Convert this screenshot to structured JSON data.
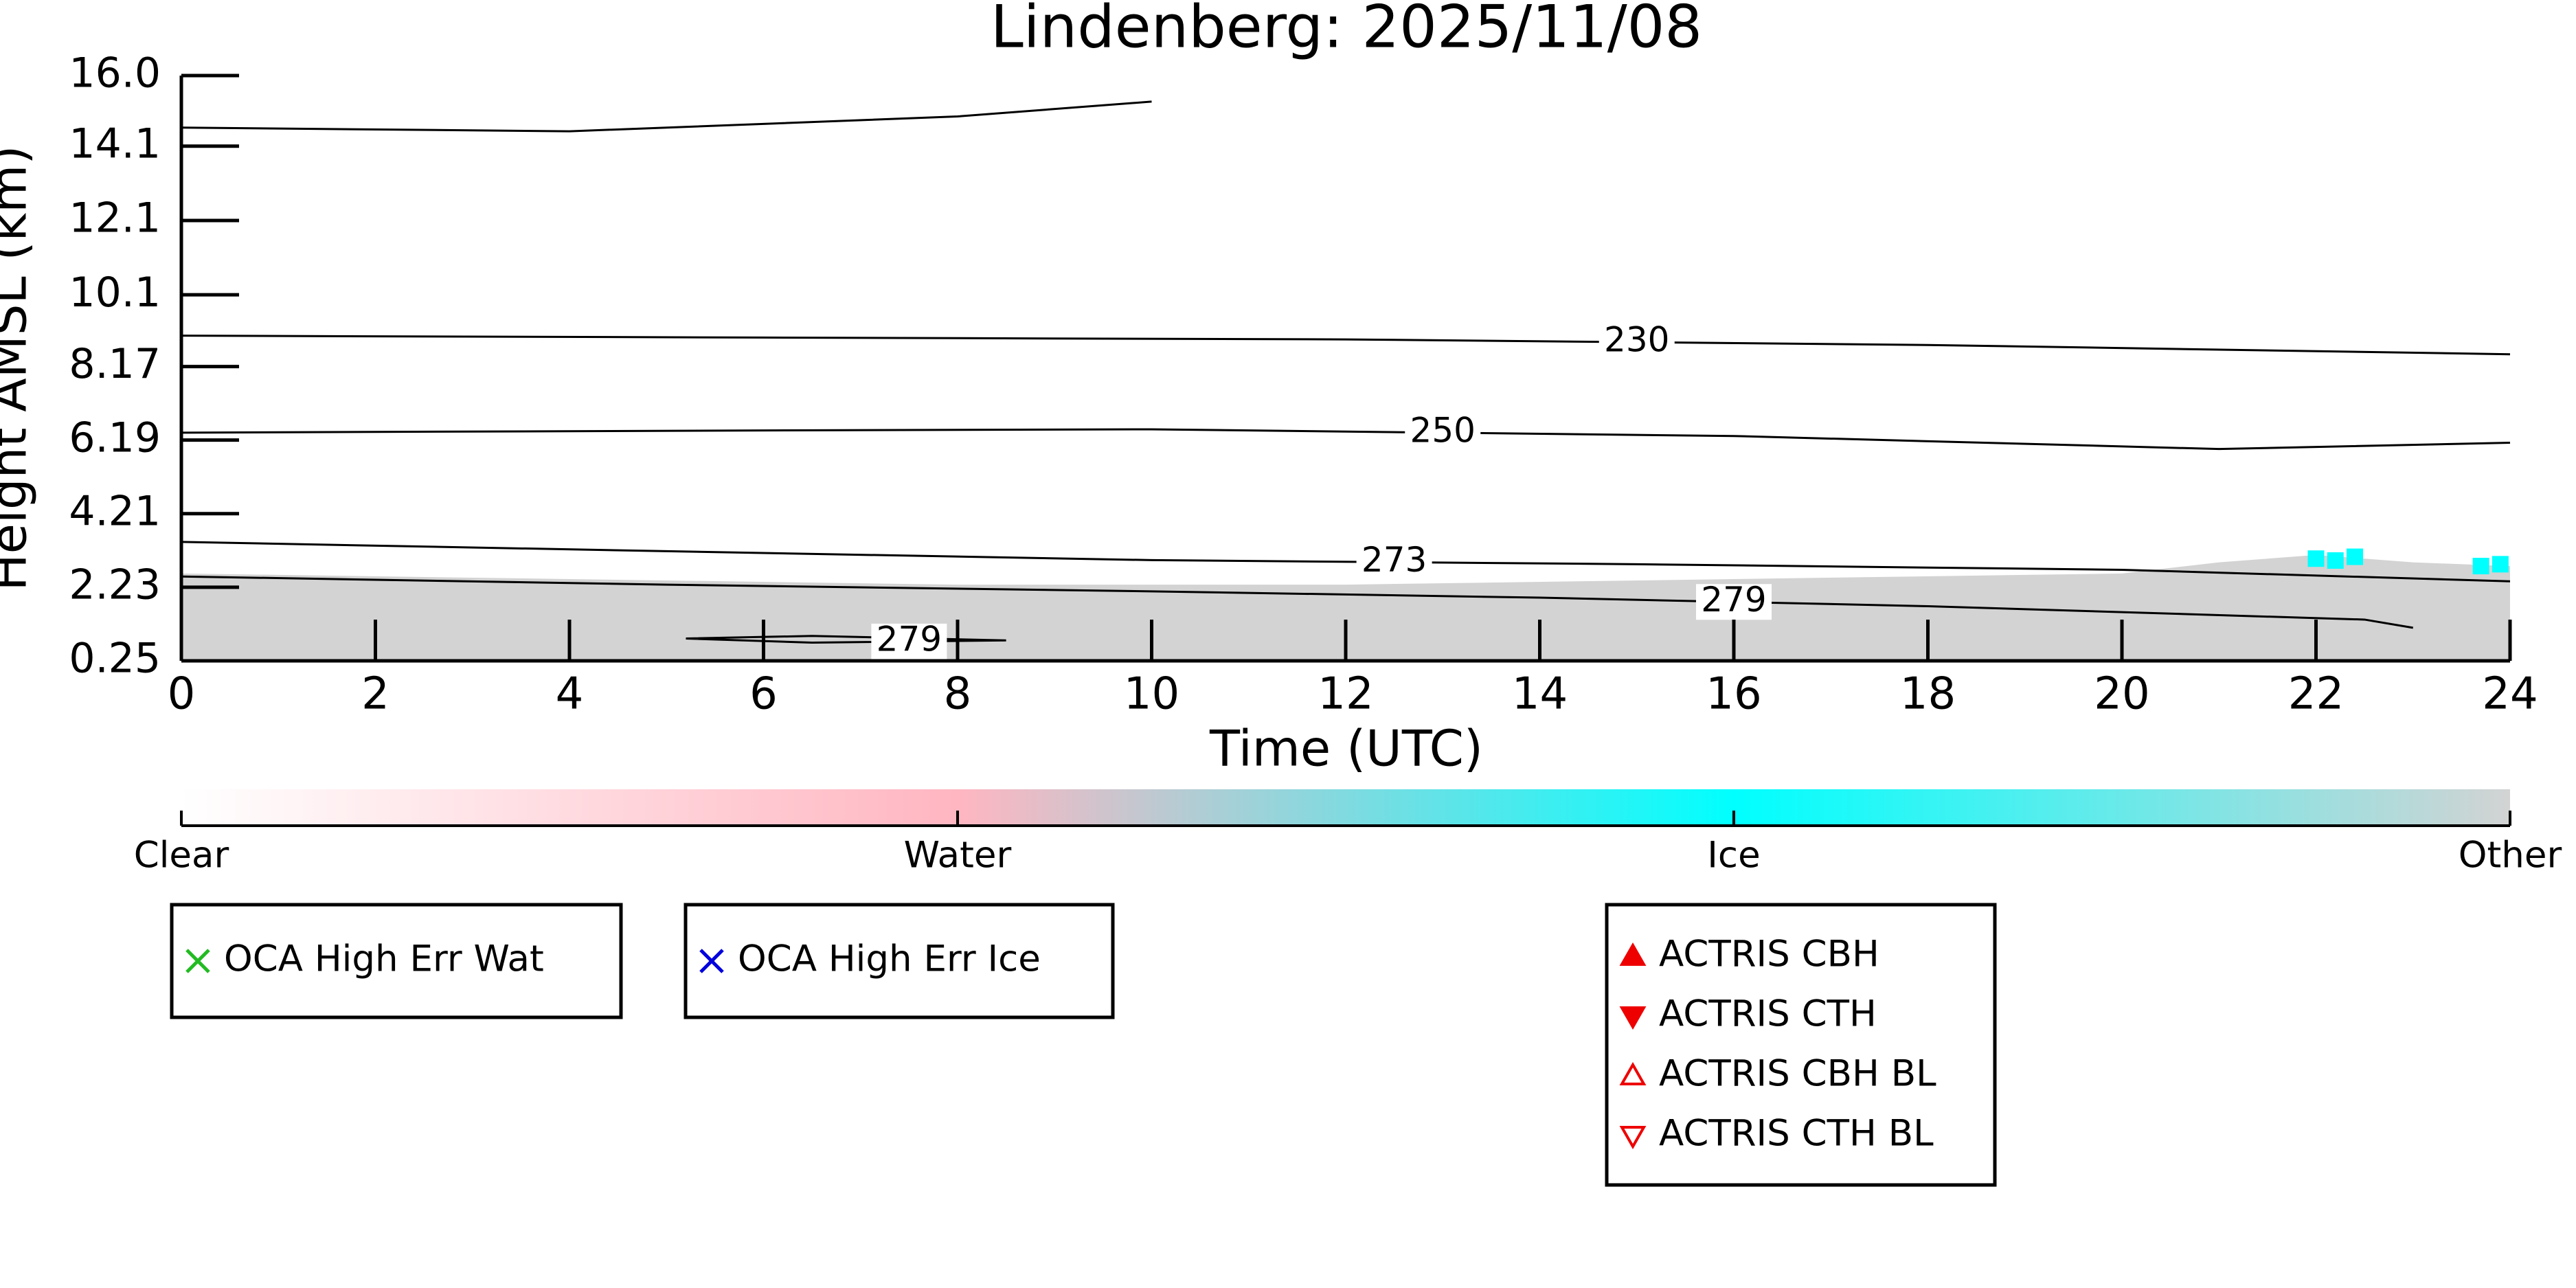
{
  "chart_data": {
    "type": "contour",
    "title": "Lindenberg: 2025/11/08",
    "x_label": "Time (UTC)",
    "y_label": "Height AMSL (km)",
    "xlim": [
      0,
      24
    ],
    "xticks": [
      0,
      2,
      4,
      6,
      8,
      10,
      12,
      14,
      16,
      18,
      20,
      22,
      24
    ],
    "ylim": [
      0.25,
      16
    ],
    "yticks": [
      0.25,
      2.23,
      4.21,
      6.19,
      8.17,
      10.1,
      12.1,
      14.1,
      {
        "value": 16,
        "label": "16.0"
      }
    ],
    "cloud": {
      "color": "#d3d3d3",
      "x": [
        0,
        4,
        8,
        12,
        16,
        20,
        21,
        22,
        23,
        24
      ],
      "y": [
        2.6,
        2.45,
        2.3,
        2.3,
        2.45,
        2.6,
        2.9,
        3.1,
        2.9,
        2.8
      ]
    },
    "ice": {
      "color": "#00ffff",
      "x": [
        22.0,
        22.2,
        22.4,
        23.7,
        23.9
      ],
      "y": [
        3.0,
        2.95,
        3.05,
        2.8,
        2.85
      ]
    },
    "contours": [
      {
        "x": [
          0,
          4,
          6,
          8,
          10
        ],
        "y": [
          14.6,
          14.5,
          14.7,
          14.9,
          15.3
        ]
      },
      {
        "level": 230,
        "x": [
          0,
          6,
          12,
          18,
          24
        ],
        "y": [
          9.0,
          8.95,
          8.9,
          8.75,
          8.5
        ]
      },
      {
        "level": 250,
        "x": [
          0,
          6,
          10,
          16,
          21,
          24
        ],
        "y": [
          6.39,
          6.45,
          6.48,
          6.3,
          5.95,
          6.12
        ]
      },
      {
        "level": 273,
        "x": [
          0,
          5,
          10,
          15,
          20,
          24
        ],
        "y": [
          3.45,
          3.2,
          2.96,
          2.85,
          2.7,
          2.39
        ]
      },
      {
        "level": 279,
        "x": [
          0,
          5,
          10,
          14,
          18,
          22.5,
          23
        ],
        "y": [
          2.52,
          2.3,
          2.12,
          1.95,
          1.72,
          1.36,
          1.14
        ]
      },
      {
        "level": 279,
        "x": [
          5.2,
          6.5,
          8.5,
          6.5,
          5.2
        ],
        "y": [
          0.85,
          0.92,
          0.8,
          0.74,
          0.85
        ]
      }
    ],
    "colorbar": {
      "labels": [
        "Clear",
        "Water",
        "Ice",
        "Other"
      ],
      "colors": [
        "#ffffff",
        "#ffb6c1",
        "#00ffff",
        "#d3d3d3"
      ]
    },
    "legends": [
      [
        {
          "name": "OCA High Err Wat",
          "marker": "x",
          "color": "#22bb22"
        }
      ],
      [
        {
          "name": "OCA High Err Ice",
          "marker": "x",
          "color": "#0000dd"
        }
      ],
      [
        {
          "name": "ACTRIS CBH",
          "marker": "up",
          "color": "#ee0000"
        },
        {
          "name": "ACTRIS CTH",
          "marker": "down",
          "color": "#ee0000"
        },
        {
          "name": "ACTRIS CBH BL",
          "marker": "up-open",
          "color": "#ee0000"
        },
        {
          "name": "ACTRIS CTH BL",
          "marker": "down-open",
          "color": "#ee0000"
        }
      ]
    ]
  }
}
